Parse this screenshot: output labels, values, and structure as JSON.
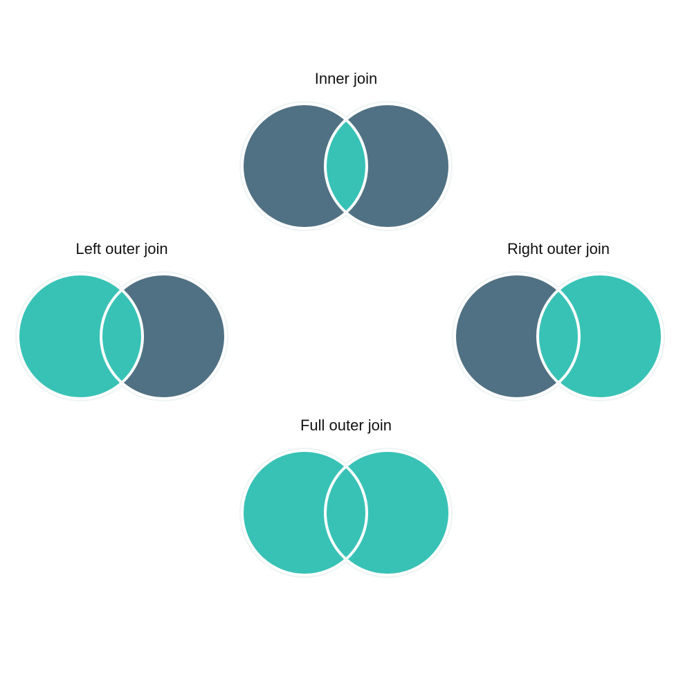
{
  "colors": {
    "selected": "#38c2b6",
    "unselected": "#507183",
    "outline": "#ffffff"
  },
  "diagrams": [
    {
      "id": "inner",
      "title": "Inner join",
      "left": "unselected",
      "middle": "selected",
      "right": "unselected"
    },
    {
      "id": "left",
      "title": "Left outer join",
      "left": "selected",
      "middle": "selected",
      "right": "unselected"
    },
    {
      "id": "right",
      "title": "Right outer join",
      "left": "unselected",
      "middle": "selected",
      "right": "selected"
    },
    {
      "id": "full",
      "title": "Full outer join",
      "left": "selected",
      "middle": "selected",
      "right": "selected"
    }
  ]
}
